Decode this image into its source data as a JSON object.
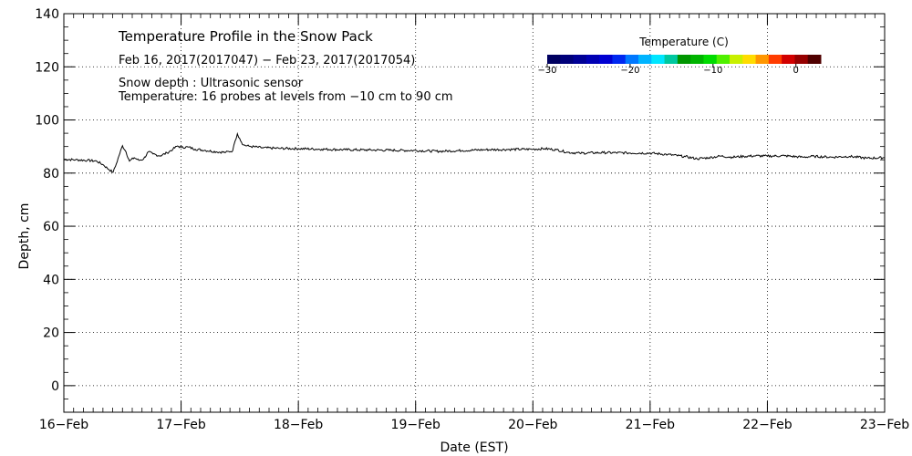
{
  "chart_data": {
    "type": "line",
    "title": "Temperature Profile in the Snow Pack",
    "subtitle": "Feb 16, 2017(2017047) − Feb 23, 2017(2017054)",
    "notes": [
      "Snow depth : Ultrasonic sensor",
      "Temperature: 16 probes at levels from −10 cm to 90 cm"
    ],
    "xlabel": "Date (EST)",
    "ylabel": "Depth, cm",
    "x_categories": [
      "16−Feb",
      "17−Feb",
      "18−Feb",
      "19−Feb",
      "20−Feb",
      "21−Feb",
      "22−Feb",
      "23−Feb"
    ],
    "xlim_days": [
      0,
      7
    ],
    "ylim": [
      -10,
      140
    ],
    "y_ticks": [
      0,
      20,
      40,
      60,
      80,
      100,
      120,
      140
    ],
    "grid": true,
    "colorbar": {
      "title": "Temperature (C)",
      "range": [
        -30,
        3
      ],
      "tick_values": [
        -30,
        -20,
        -10,
        0
      ],
      "tick_labels": [
        "−30",
        "−20",
        "−10",
        "0"
      ],
      "colors": [
        "#000060",
        "#00007a",
        "#000096",
        "#0000b4",
        "#0000d2",
        "#0028f0",
        "#0078ff",
        "#00b4ff",
        "#00e6ff",
        "#00c8a0",
        "#009600",
        "#00b400",
        "#00dc00",
        "#50f000",
        "#c8f000",
        "#ffdc00",
        "#ff9600",
        "#ff3c00",
        "#d20000",
        "#960000",
        "#500000"
      ]
    },
    "series": [
      {
        "values": [
          [
            0.0,
            85.2
          ],
          [
            0.1,
            85.0
          ],
          [
            0.2,
            84.8
          ],
          [
            0.28,
            84.5
          ],
          [
            0.34,
            83.0
          ],
          [
            0.38,
            81.5
          ],
          [
            0.42,
            80.3
          ],
          [
            0.44,
            82.5
          ],
          [
            0.47,
            86.5
          ],
          [
            0.5,
            90.3
          ],
          [
            0.53,
            88.0
          ],
          [
            0.56,
            84.5
          ],
          [
            0.6,
            85.8
          ],
          [
            0.64,
            84.8
          ],
          [
            0.68,
            85.3
          ],
          [
            0.72,
            88.0
          ],
          [
            0.76,
            87.2
          ],
          [
            0.82,
            86.5
          ],
          [
            0.88,
            87.6
          ],
          [
            0.93,
            89.0
          ],
          [
            0.97,
            90.2
          ],
          [
            1.0,
            89.7
          ],
          [
            1.06,
            89.8
          ],
          [
            1.12,
            89.0
          ],
          [
            1.2,
            88.6
          ],
          [
            1.3,
            88.0
          ],
          [
            1.38,
            87.8
          ],
          [
            1.44,
            88.4
          ],
          [
            1.46,
            92.0
          ],
          [
            1.48,
            94.8
          ],
          [
            1.5,
            93.0
          ],
          [
            1.53,
            90.6
          ],
          [
            1.58,
            90.1
          ],
          [
            1.7,
            89.5
          ],
          [
            1.85,
            89.3
          ],
          [
            2.0,
            89.2
          ],
          [
            2.2,
            89.0
          ],
          [
            2.4,
            88.8
          ],
          [
            2.6,
            88.7
          ],
          [
            2.8,
            88.6
          ],
          [
            3.0,
            88.5
          ],
          [
            3.2,
            88.2
          ],
          [
            3.4,
            88.5
          ],
          [
            3.6,
            88.8
          ],
          [
            3.8,
            88.9
          ],
          [
            4.0,
            89.0
          ],
          [
            4.1,
            89.2
          ],
          [
            4.2,
            88.8
          ],
          [
            4.3,
            87.8
          ],
          [
            4.4,
            87.5
          ],
          [
            4.6,
            87.7
          ],
          [
            4.8,
            87.6
          ],
          [
            5.0,
            87.5
          ],
          [
            5.15,
            87.0
          ],
          [
            5.3,
            86.2
          ],
          [
            5.4,
            85.4
          ],
          [
            5.5,
            85.8
          ],
          [
            5.6,
            86.4
          ],
          [
            5.7,
            86.0
          ],
          [
            5.8,
            86.3
          ],
          [
            5.9,
            86.5
          ],
          [
            6.0,
            86.4
          ],
          [
            6.15,
            86.5
          ],
          [
            6.3,
            86.0
          ],
          [
            6.4,
            86.3
          ],
          [
            6.55,
            86.0
          ],
          [
            6.7,
            86.3
          ],
          [
            6.85,
            85.6
          ],
          [
            7.0,
            85.8
          ]
        ]
      }
    ]
  }
}
